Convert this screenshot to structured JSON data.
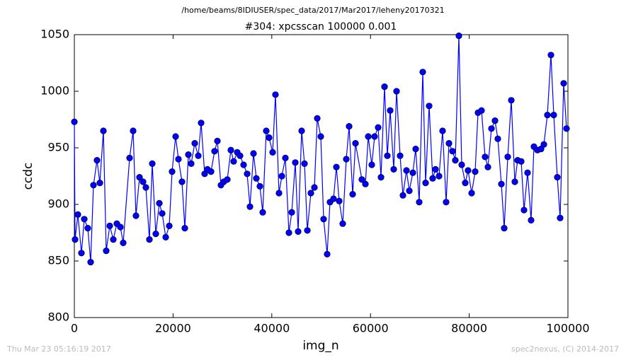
{
  "chart_data": {
    "type": "line",
    "suptitle": "/home/beams/8IDIUSER/spec_data/2017/Mar2017/leheny20170321",
    "title": "#304: xpcsscan 100000 0.001",
    "xlabel": "img_n",
    "ylabel": "ccdc",
    "footer_left": "Thu Mar 23 05:16:19 2017",
    "footer_right": "spec2nexus, (C) 2014-2017",
    "color": "#0000ff",
    "marker": "o",
    "xlim": [
      0,
      100000
    ],
    "ylim": [
      800,
      1050
    ],
    "xticks": [
      0,
      20000,
      40000,
      60000,
      80000,
      100000
    ],
    "yticks": [
      800,
      850,
      900,
      950,
      1000,
      1050
    ],
    "x": [
      0,
      143,
      717,
      1435,
      2009,
      2726,
      3300,
      3874,
      4591,
      5165,
      5882,
      6456,
      7174,
      7891,
      8608,
      9326,
      9899,
      11191,
      11908,
      12482,
      13199,
      13917,
      14490,
      15208,
      15782,
      16499,
      17216,
      17790,
      18508,
      19225,
      19799,
      20516,
      21090,
      21807,
      22381,
      23099,
      23673,
      24390,
      25107,
      25681,
      26399,
      26972,
      27690,
      28407,
      28981,
      29698,
      30272,
      30990,
      31707,
      32281,
      32998,
      33572,
      34289,
      35007,
      35581,
      36298,
      36872,
      37589,
      38163,
      38880,
      39454,
      40172,
      40745,
      41463,
      42037,
      42754,
      43471,
      44045,
      44763,
      45337,
      46054,
      46628,
      47202,
      47919,
      48637,
      49211,
      49928,
      50502,
      51219,
      51793,
      52511,
      53085,
      53658,
      54376,
      55093,
      55667,
      56384,
      56958,
      58249,
      58967,
      59541,
      60258,
      60832,
      61549,
      62123,
      62841,
      63414,
      63988,
      64706,
      65280,
      65997,
      66571,
      67288,
      67862,
      68579,
      69153,
      69871,
      70588,
      71162,
      71879,
      72597,
      73171,
      73888,
      74605,
      75323,
      75897,
      76614,
      77188,
      77905,
      78479,
      79197,
      79770,
      80488,
      81205,
      81779,
      82496,
      83214,
      83788,
      84505,
      85222,
      85796,
      86514,
      87088,
      87805,
      88522,
      89240,
      89813,
      90531,
      91105,
      91822,
      92540,
      93113,
      93831,
      94548,
      95122,
      95839,
      96557,
      97130,
      97848,
      98422,
      99139,
      99713
    ],
    "values": [
      973,
      869,
      891,
      857,
      887,
      879,
      849,
      917,
      939,
      919,
      965,
      859,
      881,
      869,
      883,
      880,
      866,
      941,
      965,
      890,
      924,
      920,
      915,
      869,
      936,
      874,
      901,
      892,
      871,
      881,
      929,
      960,
      940,
      920,
      879,
      944,
      936,
      954,
      943,
      972,
      927,
      931,
      929,
      947,
      956,
      917,
      920,
      922,
      948,
      938,
      946,
      943,
      935,
      927,
      898,
      945,
      923,
      916,
      893,
      965,
      959,
      946,
      997,
      910,
      925,
      941,
      875,
      893,
      937,
      876,
      965,
      936,
      877,
      910,
      915,
      976,
      960,
      887,
      856,
      902,
      905,
      933,
      903,
      883,
      940,
      969,
      909,
      954,
      922,
      918,
      960,
      935,
      960,
      968,
      924,
      1004,
      943,
      983,
      931,
      1000,
      943,
      908,
      930,
      912,
      928,
      949,
      902,
      1017,
      919,
      987,
      923,
      931,
      925,
      965,
      902,
      954,
      947,
      939,
      1049,
      935,
      919,
      930,
      910,
      929,
      981,
      983,
      942,
      933,
      967,
      974,
      958,
      918,
      879,
      942,
      992,
      920,
      939,
      938,
      895,
      928,
      886,
      951,
      948,
      949,
      953,
      979,
      1032,
      979,
      924,
      888,
      1007,
      967
    ]
  }
}
